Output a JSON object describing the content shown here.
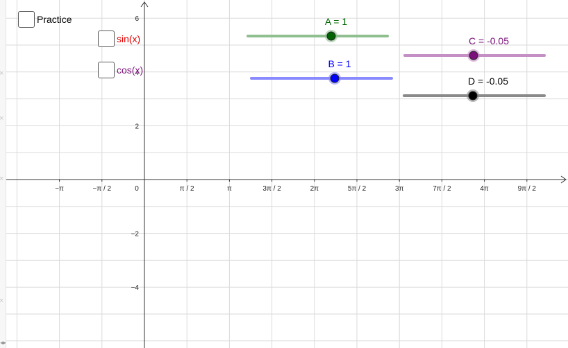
{
  "checkboxes": [
    {
      "id": "practice",
      "label": "Practice",
      "checked": false
    },
    {
      "id": "sin",
      "label": "sin(x)",
      "checked": false,
      "color": "#e00000"
    },
    {
      "id": "cos",
      "label": "cos(x)",
      "checked": false,
      "color": "#7a117a"
    }
  ],
  "axes": {
    "x_tick_labels": [
      "−π",
      "−π / 2",
      "0",
      "π / 2",
      "π",
      "3π / 2",
      "2π",
      "5π / 2",
      "3π",
      "7π / 2",
      "4π",
      "9π / 2"
    ],
    "y_tick_labels": [
      "6",
      "4",
      "2",
      "−2",
      "−4"
    ],
    "grid": true
  },
  "sliders": [
    {
      "name": "A",
      "caption": "A = 1",
      "value": 1,
      "color": "#006400",
      "track_color": "#8fbf8f"
    },
    {
      "name": "B",
      "caption": "B = 1",
      "value": 1,
      "color": "#0000ff",
      "track_color": "#8a8aff"
    },
    {
      "name": "C",
      "caption": "C = -0.05",
      "value": -0.05,
      "color": "#7a117a",
      "track_color": "#c48fc4"
    },
    {
      "name": "D",
      "caption": "D = -0.05",
      "value": -0.05,
      "color": "#000000",
      "track_color": "#8a8a8a"
    }
  ],
  "edge_marks": [
    "×",
    "×",
    "×",
    "×",
    "×"
  ],
  "bottom_toggle": "◂▸"
}
